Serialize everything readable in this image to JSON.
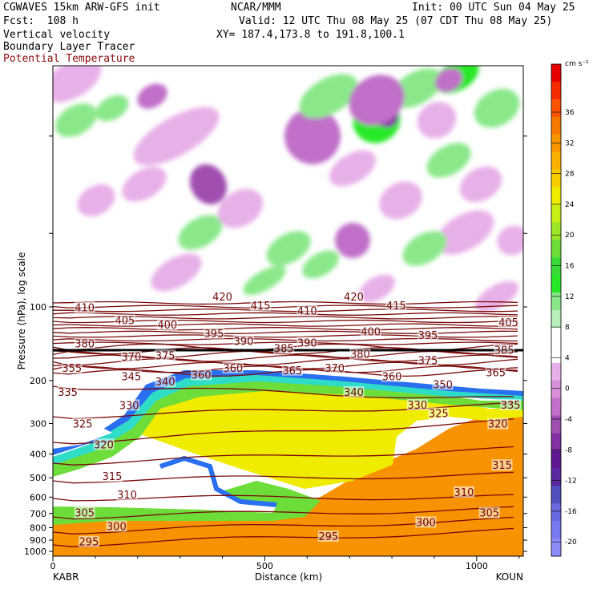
{
  "header": {
    "line1_left": "CGWAVES 15km ARW-GFS init",
    "line1_center": "NCAR/MMM",
    "line1_right": "Init: 00 UTC Sun 04 May 25",
    "line2_left": "Fcst:  108 h",
    "line2_right": "Valid: 12 UTC Thu 08 May 25 (07 CDT Thu 08 May 25)",
    "line3_left": "Vertical velocity",
    "line3_right": "XY= 187.4,173.8 to 191.8,100.1",
    "line4_left": "Boundary Layer Tracer",
    "line5_left": "Potential Temperature"
  },
  "colors": {
    "theta": "#7a0a0a",
    "frame": "#000000",
    "bl_white_zone": "#ffffff"
  },
  "chart_data": {
    "type": "heatmap",
    "title": "",
    "xlabel": "Distance (km)",
    "ylabel": "Pressure (hPa), log scale",
    "x_ticks": [
      0,
      500,
      1000
    ],
    "y_ticks": [
      100,
      200,
      300,
      400,
      500,
      600,
      700,
      800,
      900,
      1000
    ],
    "endpoints": {
      "left": "KABR",
      "right": "KOUN"
    },
    "xlim": [
      0,
      1110
    ],
    "colorbar": {
      "unit": "cm s⁻¹",
      "labels": [
        36,
        32,
        28,
        24,
        20,
        16,
        12,
        8,
        4,
        0,
        -4,
        -8,
        -12,
        -16,
        -20
      ],
      "colors": [
        "#e60000",
        "#f52a00",
        "#fa5200",
        "#f77800",
        "#f79400",
        "#f9b000",
        "#f7cd00",
        "#f0ec00",
        "#c8ef17",
        "#9ce62a",
        "#6ddd3a",
        "#3ada3a",
        "#28e828",
        "#8ae88a",
        "#b9f0b9",
        "#ffffff",
        "#ffffff",
        "#e8b0e8",
        "#d890d8",
        "#c070c8",
        "#a050b0",
        "#8030a0",
        "#601890",
        "#5a28a0",
        "#5050c0",
        "#6a6ae0",
        "#7878f0",
        "#8c8cf8"
      ]
    },
    "theta_labels": [
      {
        "t": "410",
        "x": 75,
        "p": 102
      },
      {
        "t": "405",
        "x": 170,
        "p": 115
      },
      {
        "t": "400",
        "x": 270,
        "p": 120
      },
      {
        "t": "420",
        "x": 400,
        "p": 92
      },
      {
        "t": "415",
        "x": 490,
        "p": 100
      },
      {
        "t": "410",
        "x": 600,
        "p": 105
      },
      {
        "t": "420",
        "x": 710,
        "p": 92
      },
      {
        "t": "415",
        "x": 810,
        "p": 100
      },
      {
        "t": "405",
        "x": 1075,
        "p": 117
      },
      {
        "t": "395",
        "x": 380,
        "p": 130
      },
      {
        "t": "390",
        "x": 450,
        "p": 140
      },
      {
        "t": "390",
        "x": 600,
        "p": 142
      },
      {
        "t": "400",
        "x": 750,
        "p": 128
      },
      {
        "t": "395",
        "x": 885,
        "p": 132
      },
      {
        "t": "380",
        "x": 75,
        "p": 143
      },
      {
        "t": "385",
        "x": 545,
        "p": 150
      },
      {
        "t": "380",
        "x": 725,
        "p": 158
      },
      {
        "t": "385",
        "x": 1065,
        "p": 152
      },
      {
        "t": "370",
        "x": 185,
        "p": 162
      },
      {
        "t": "375",
        "x": 265,
        "p": 160
      },
      {
        "t": "375",
        "x": 885,
        "p": 168
      },
      {
        "t": "355",
        "x": 45,
        "p": 180
      },
      {
        "t": "360",
        "x": 425,
        "p": 180
      },
      {
        "t": "365",
        "x": 565,
        "p": 184
      },
      {
        "t": "370",
        "x": 665,
        "p": 180
      },
      {
        "t": "365",
        "x": 1045,
        "p": 188
      },
      {
        "t": "345",
        "x": 185,
        "p": 195
      },
      {
        "t": "340",
        "x": 265,
        "p": 205
      },
      {
        "t": "360",
        "x": 350,
        "p": 192
      },
      {
        "t": "360",
        "x": 800,
        "p": 195
      },
      {
        "t": "350",
        "x": 920,
        "p": 210
      },
      {
        "t": "335",
        "x": 35,
        "p": 226
      },
      {
        "t": "340",
        "x": 710,
        "p": 226
      },
      {
        "t": "330",
        "x": 180,
        "p": 256
      },
      {
        "t": "330",
        "x": 860,
        "p": 255
      },
      {
        "t": "325",
        "x": 910,
        "p": 276
      },
      {
        "t": "335",
        "x": 1080,
        "p": 255
      },
      {
        "t": "325",
        "x": 70,
        "p": 305
      },
      {
        "t": "320",
        "x": 1050,
        "p": 305
      },
      {
        "t": "320",
        "x": 120,
        "p": 370
      },
      {
        "t": "315",
        "x": 140,
        "p": 500
      },
      {
        "t": "315",
        "x": 1060,
        "p": 450
      },
      {
        "t": "310",
        "x": 175,
        "p": 595
      },
      {
        "t": "310",
        "x": 970,
        "p": 580
      },
      {
        "t": "305",
        "x": 75,
        "p": 705
      },
      {
        "t": "305",
        "x": 1030,
        "p": 705
      },
      {
        "t": "300",
        "x": 150,
        "p": 800
      },
      {
        "t": "300",
        "x": 880,
        "p": 770
      },
      {
        "t": "295",
        "x": 85,
        "p": 925
      },
      {
        "t": "295",
        "x": 650,
        "p": 880
      }
    ]
  }
}
